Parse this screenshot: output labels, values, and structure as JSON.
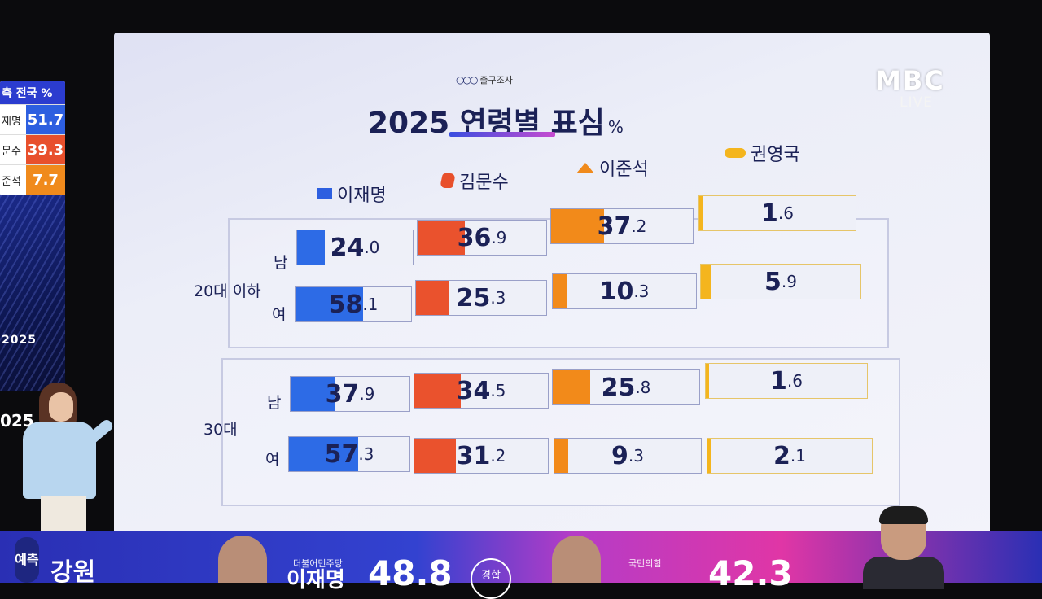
{
  "sidebar_results": {
    "header": "측 전국 %",
    "rows": [
      {
        "name": "재명",
        "value": "51.7",
        "color": "#2d5fe0"
      },
      {
        "name": "문수",
        "value": "39.3",
        "color": "#e8502c"
      },
      {
        "name": "준석",
        "value": "7.7",
        "color": "#f08a1c"
      }
    ]
  },
  "studio": {
    "year_tag": "2025",
    "logo_tag": "025"
  },
  "broadcaster": {
    "logo": "MBC",
    "live": "LIVE"
  },
  "board": {
    "survey_label": "출구조사",
    "title": "2025 연령별 표심",
    "unit": "%",
    "legend": [
      {
        "name": "이재명",
        "icon": "blue-square-icon",
        "color": "#2d5fe0"
      },
      {
        "name": "김문수",
        "icon": "red-leaf-icon",
        "color": "#e8502c"
      },
      {
        "name": "이준석",
        "icon": "orange-chevron-icon",
        "color": "#f08a1c"
      },
      {
        "name": "권영국",
        "icon": "gold-pill-icon",
        "color": "#f4b51e"
      }
    ],
    "groups": [
      {
        "label": "20대 이하",
        "rows": [
          {
            "gender": "남",
            "values": [
              {
                "int": "24",
                "dec": ".0",
                "pct": 24.0
              },
              {
                "int": "36",
                "dec": ".9",
                "pct": 36.9
              },
              {
                "int": "37",
                "dec": ".2",
                "pct": 37.2
              },
              {
                "int": "1",
                "dec": ".6",
                "pct": 1.6
              }
            ]
          },
          {
            "gender": "여",
            "values": [
              {
                "int": "58",
                "dec": ".1",
                "pct": 58.1
              },
              {
                "int": "25",
                "dec": ".3",
                "pct": 25.3
              },
              {
                "int": "10",
                "dec": ".3",
                "pct": 10.3
              },
              {
                "int": "5",
                "dec": ".9",
                "pct": 5.9
              }
            ]
          }
        ]
      },
      {
        "label": "30대",
        "rows": [
          {
            "gender": "남",
            "values": [
              {
                "int": "37",
                "dec": ".9",
                "pct": 37.9
              },
              {
                "int": "34",
                "dec": ".5",
                "pct": 34.5
              },
              {
                "int": "25",
                "dec": ".8",
                "pct": 25.8
              },
              {
                "int": "1",
                "dec": ".6",
                "pct": 1.6
              }
            ]
          },
          {
            "gender": "여",
            "values": [
              {
                "int": "57",
                "dec": ".3",
                "pct": 57.3
              },
              {
                "int": "31",
                "dec": ".2",
                "pct": 31.2
              },
              {
                "int": "9",
                "dec": ".3",
                "pct": 9.3
              },
              {
                "int": "2",
                "dec": ".1",
                "pct": 2.1
              }
            ]
          }
        ]
      }
    ]
  },
  "bottom_ticker": {
    "pill": "예측",
    "region": "강원",
    "candidate1_party": "더불어민주당",
    "candidate1_name": "이재명",
    "candidate1_value": "48.8",
    "badge": "경합",
    "candidate2_party": "국민의힘",
    "candidate2_value": "42.3"
  }
}
